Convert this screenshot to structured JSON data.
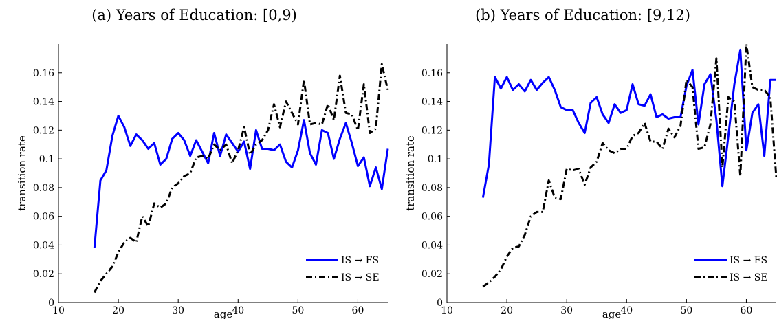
{
  "chart_data": [
    {
      "type": "line",
      "title": "(a) Years of Education: [0,9)",
      "xlabel": "age",
      "ylabel": "transition rate",
      "xlim": [
        10,
        65
      ],
      "ylim": [
        0,
        0.18
      ],
      "xticks": [
        10,
        20,
        30,
        40,
        50,
        60
      ],
      "yticks": [
        0,
        0.02,
        0.04,
        0.06,
        0.08,
        0.1,
        0.12,
        0.14,
        0.16
      ],
      "ytick_labels": [
        "0",
        "0.02",
        "0.04",
        "0.06",
        "0.08",
        "0.1",
        "0.12",
        "0.14",
        "0.16"
      ],
      "grid": false,
      "legend": "bottom-right",
      "series": [
        {
          "name": "IS → FS",
          "color": "#0000ff",
          "style": "solid",
          "x": [
            16,
            17,
            18,
            19,
            20,
            21,
            22,
            23,
            24,
            25,
            26,
            27,
            28,
            29,
            30,
            31,
            32,
            33,
            34,
            35,
            36,
            37,
            38,
            39,
            40,
            41,
            42,
            43,
            44,
            45,
            46,
            47,
            48,
            49,
            50,
            51,
            52,
            53,
            54,
            55,
            56,
            57,
            58,
            59,
            60,
            61,
            62,
            63,
            64,
            65
          ],
          "y": [
            0.038,
            0.085,
            0.092,
            0.116,
            0.13,
            0.122,
            0.109,
            0.117,
            0.113,
            0.107,
            0.111,
            0.096,
            0.1,
            0.114,
            0.118,
            0.113,
            0.102,
            0.113,
            0.105,
            0.097,
            0.118,
            0.102,
            0.117,
            0.111,
            0.105,
            0.112,
            0.093,
            0.12,
            0.107,
            0.107,
            0.106,
            0.11,
            0.098,
            0.094,
            0.106,
            0.127,
            0.104,
            0.096,
            0.12,
            0.118,
            0.1,
            0.114,
            0.125,
            0.111,
            0.095,
            0.101,
            0.081,
            0.094,
            0.079,
            0.107
          ]
        },
        {
          "name": "IS → SE",
          "color": "#000000",
          "style": "dashdot",
          "x": [
            16,
            17,
            18,
            19,
            20,
            21,
            22,
            23,
            24,
            25,
            26,
            27,
            28,
            29,
            30,
            31,
            32,
            33,
            34,
            35,
            36,
            37,
            38,
            39,
            40,
            41,
            42,
            43,
            44,
            45,
            46,
            47,
            48,
            49,
            50,
            51,
            52,
            53,
            54,
            55,
            56,
            57,
            58,
            59,
            60,
            61,
            62,
            63,
            64,
            65
          ],
          "y": [
            0.007,
            0.015,
            0.02,
            0.025,
            0.035,
            0.042,
            0.045,
            0.042,
            0.06,
            0.053,
            0.069,
            0.066,
            0.069,
            0.08,
            0.083,
            0.088,
            0.09,
            0.101,
            0.102,
            0.1,
            0.11,
            0.106,
            0.11,
            0.097,
            0.106,
            0.122,
            0.103,
            0.11,
            0.113,
            0.12,
            0.138,
            0.122,
            0.14,
            0.132,
            0.124,
            0.155,
            0.124,
            0.125,
            0.124,
            0.138,
            0.127,
            0.158,
            0.132,
            0.131,
            0.12,
            0.152,
            0.118,
            0.121,
            0.166,
            0.148
          ]
        }
      ]
    },
    {
      "type": "line",
      "title": "(b) Years of Education: [9,12)",
      "xlabel": "age",
      "ylabel": "transition rate",
      "xlim": [
        10,
        65
      ],
      "ylim": [
        0,
        0.18
      ],
      "xticks": [
        10,
        20,
        30,
        40,
        50,
        60
      ],
      "yticks": [
        0,
        0.02,
        0.04,
        0.06,
        0.08,
        0.1,
        0.12,
        0.14,
        0.16
      ],
      "ytick_labels": [
        "0",
        "0.02",
        "0.04",
        "0.06",
        "0.08",
        "0.1",
        "0.12",
        "0.14",
        "0.16"
      ],
      "grid": false,
      "legend": "bottom-right",
      "series": [
        {
          "name": "IS → FS",
          "color": "#0000ff",
          "style": "solid",
          "x": [
            16,
            17,
            18,
            19,
            20,
            21,
            22,
            23,
            24,
            25,
            26,
            27,
            28,
            29,
            30,
            31,
            32,
            33,
            34,
            35,
            36,
            37,
            38,
            39,
            40,
            41,
            42,
            43,
            44,
            45,
            46,
            47,
            48,
            49,
            50,
            51,
            52,
            53,
            54,
            55,
            56,
            57,
            58,
            59,
            60,
            61,
            62,
            63,
            64,
            65
          ],
          "y": [
            0.073,
            0.096,
            0.157,
            0.149,
            0.157,
            0.148,
            0.152,
            0.147,
            0.155,
            0.148,
            0.153,
            0.157,
            0.148,
            0.136,
            0.134,
            0.134,
            0.125,
            0.118,
            0.139,
            0.143,
            0.131,
            0.125,
            0.138,
            0.132,
            0.134,
            0.152,
            0.138,
            0.137,
            0.145,
            0.129,
            0.131,
            0.128,
            0.129,
            0.129,
            0.151,
            0.162,
            0.124,
            0.152,
            0.159,
            0.127,
            0.081,
            0.116,
            0.152,
            0.176,
            0.106,
            0.132,
            0.138,
            0.102,
            0.155,
            0.155
          ]
        },
        {
          "name": "IS → SE",
          "color": "#000000",
          "style": "dashdot",
          "x": [
            16,
            17,
            18,
            19,
            20,
            21,
            22,
            23,
            24,
            25,
            26,
            27,
            28,
            29,
            30,
            31,
            32,
            33,
            34,
            35,
            36,
            37,
            38,
            39,
            40,
            41,
            42,
            43,
            44,
            45,
            46,
            47,
            48,
            49,
            50,
            51,
            52,
            53,
            54,
            55,
            56,
            57,
            58,
            59,
            60,
            61,
            62,
            63,
            64,
            65
          ],
          "y": [
            0.011,
            0.014,
            0.018,
            0.023,
            0.032,
            0.038,
            0.039,
            0.047,
            0.06,
            0.063,
            0.063,
            0.085,
            0.073,
            0.072,
            0.093,
            0.092,
            0.093,
            0.082,
            0.094,
            0.098,
            0.111,
            0.106,
            0.104,
            0.107,
            0.107,
            0.116,
            0.118,
            0.125,
            0.112,
            0.112,
            0.107,
            0.121,
            0.115,
            0.123,
            0.155,
            0.15,
            0.107,
            0.108,
            0.124,
            0.17,
            0.094,
            0.143,
            0.14,
            0.088,
            0.18,
            0.15,
            0.148,
            0.148,
            0.143,
            0.087
          ]
        }
      ]
    }
  ]
}
